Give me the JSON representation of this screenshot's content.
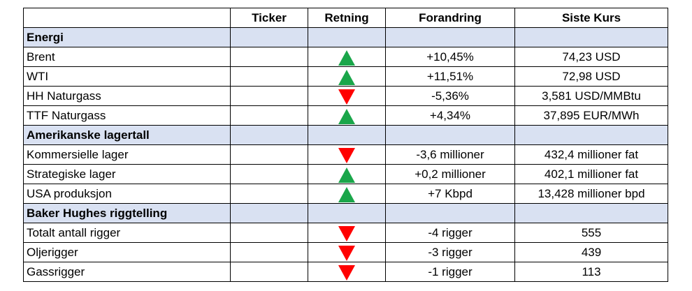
{
  "headers": [
    "",
    "Ticker",
    "Retning",
    "Forandring",
    "Siste Kurs"
  ],
  "colors": {
    "section_bg": "#d9e1f2",
    "up": "#1aa64a",
    "down": "#ff0000"
  },
  "sections": [
    {
      "title": "Energi",
      "rows": [
        {
          "name": "Brent",
          "ticker": "",
          "direction": "up",
          "direction_icon": "up-triangle-icon",
          "change": "+10,45%",
          "last": "74,23 USD"
        },
        {
          "name": "WTI",
          "ticker": "",
          "direction": "up",
          "direction_icon": "up-triangle-icon",
          "change": "+11,51%",
          "last": "72,98 USD"
        },
        {
          "name": "HH Naturgass",
          "ticker": "",
          "direction": "down",
          "direction_icon": "down-triangle-icon",
          "change": "-5,36%",
          "last": "3,581 USD/MMBtu"
        },
        {
          "name": "TTF Naturgass",
          "ticker": "",
          "direction": "up",
          "direction_icon": "up-triangle-icon",
          "change": "+4,34%",
          "last": "37,895 EUR/MWh"
        }
      ]
    },
    {
      "title": "Amerikanske lagertall",
      "rows": [
        {
          "name": "Kommersielle lager",
          "ticker": "",
          "direction": "down",
          "direction_icon": "down-triangle-icon",
          "change": "-3,6 millioner",
          "last": "432,4 millioner fat"
        },
        {
          "name": "Strategiske lager",
          "ticker": "",
          "direction": "up",
          "direction_icon": "up-triangle-icon",
          "change": "+0,2 millioner",
          "last": "402,1 millioner fat"
        },
        {
          "name": "USA produksjon",
          "ticker": "",
          "direction": "up",
          "direction_icon": "up-triangle-icon",
          "change": "+7 Kbpd",
          "last": "13,428 millioner bpd"
        }
      ]
    },
    {
      "title": "Baker Hughes riggtelling",
      "rows": [
        {
          "name": "Totalt antall rigger",
          "ticker": "",
          "direction": "down",
          "direction_icon": "down-triangle-icon",
          "change": "-4 rigger",
          "last": "555"
        },
        {
          "name": "Oljerigger",
          "ticker": "",
          "direction": "down",
          "direction_icon": "down-triangle-icon",
          "change": "-3 rigger",
          "last": "439"
        },
        {
          "name": "Gassrigger",
          "ticker": "",
          "direction": "down",
          "direction_icon": "down-triangle-icon",
          "change": "-1 rigger",
          "last": "113"
        }
      ]
    }
  ]
}
